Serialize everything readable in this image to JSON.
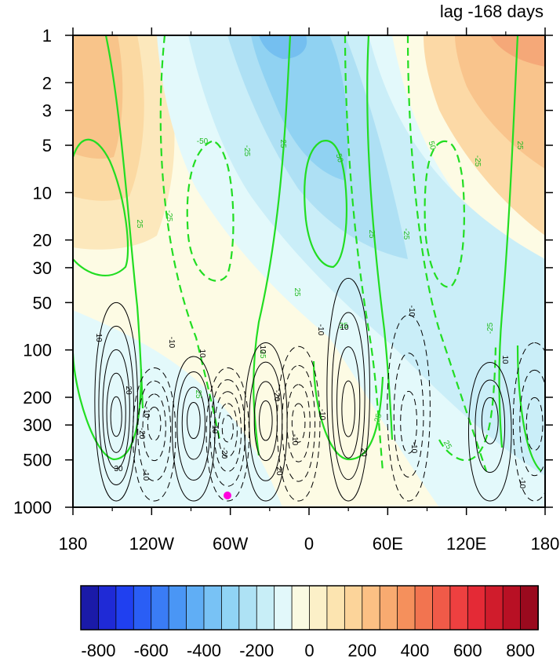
{
  "chart_data": {
    "type": "heatmap",
    "title": "lag -168 days",
    "x_tick_labels": [
      "180",
      "120W",
      "60W",
      "0",
      "60E",
      "120E",
      "180"
    ],
    "x_tick_values": [
      -180,
      -120,
      -60,
      0,
      60,
      120,
      180
    ],
    "y_tick_labels": [
      "1",
      "2",
      "3",
      "5",
      "10",
      "20",
      "30",
      "50",
      "100",
      "200",
      "300",
      "500",
      "1000"
    ],
    "y_tick_values": [
      1,
      2,
      3,
      5,
      10,
      20,
      30,
      50,
      100,
      200,
      300,
      500,
      1000
    ],
    "y_scale": "log",
    "y_reversed": true,
    "xlim": [
      -180,
      180
    ],
    "ylim": [
      1000,
      1
    ],
    "colorbar": {
      "labels": [
        "-800",
        "-600",
        "-400",
        "-200",
        "0",
        "200",
        "400",
        "600",
        "800"
      ],
      "values": [
        -800,
        -600,
        -400,
        -200,
        0,
        200,
        400,
        600,
        800
      ],
      "level_step": 50,
      "colors": [
        "#1a1aa8",
        "#1f2ad6",
        "#2040f0",
        "#2a5ef5",
        "#3a7cf5",
        "#4a96f5",
        "#60aef5",
        "#78c2f5",
        "#90d4f5",
        "#aee2f5",
        "#c8eef7",
        "#e2f8fa",
        "#fafae2",
        "#fcf0c8",
        "#fce4b0",
        "#fcd49a",
        "#fcc084",
        "#f8aa70",
        "#f5905c",
        "#f27450",
        "#f05a48",
        "#ee4040",
        "#e42a36",
        "#d01c2c",
        "#b81024",
        "#9a0a1e"
      ]
    },
    "fill_field": {
      "description_units": "shaded field",
      "contour_interval": 50,
      "sample_values": [
        {
          "lon": -150,
          "p": 2,
          "value": 200
        },
        {
          "lon": 165,
          "p": 1.2,
          "value": 350
        },
        {
          "lon": -20,
          "p": 1.2,
          "value": -300
        },
        {
          "lon": 0,
          "p": 10,
          "value": -150
        },
        {
          "lon": 60,
          "p": 30,
          "value": -50
        },
        {
          "lon": -140,
          "p": 200,
          "value": -50
        },
        {
          "lon": 20,
          "p": 500,
          "value": 20
        }
      ]
    },
    "green_contours": {
      "labels": [
        "-50",
        "-25",
        "25",
        "50"
      ],
      "values": [
        -50,
        -25,
        25,
        50
      ],
      "dashed_negative": true
    },
    "black_contours": {
      "labels": [
        "-30",
        "-20",
        "-10",
        "10",
        "20",
        "30"
      ],
      "values": [
        -30,
        -20,
        -10,
        10,
        20,
        30
      ],
      "dashed_negative": true
    },
    "marker": {
      "lon": -60,
      "p": 850,
      "color": "#ff00dd"
    },
    "grid": false
  }
}
